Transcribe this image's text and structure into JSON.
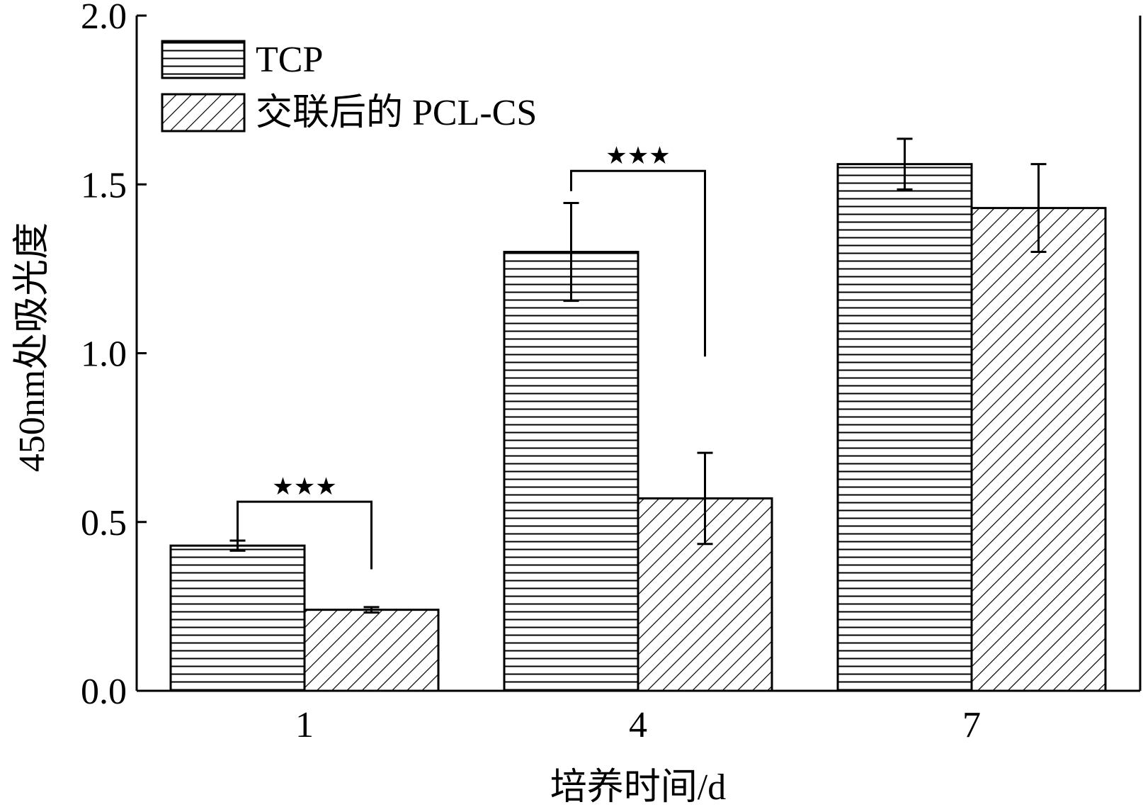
{
  "chart_data": {
    "type": "bar",
    "xlabel": "培养时间/d",
    "ylabel": "450nm处吸光度",
    "categories": [
      "1",
      "4",
      "7"
    ],
    "ylim": [
      0,
      2.0
    ],
    "yticks": [
      "0.0",
      "0.5",
      "1.0",
      "1.5",
      "2.0"
    ],
    "legend_position": "top-left",
    "grid": false,
    "series": [
      {
        "name": "TCP",
        "pattern": "horizontal-lines",
        "values": [
          0.43,
          1.3,
          1.56
        ],
        "errors": [
          0.015,
          0.145,
          0.075
        ]
      },
      {
        "name": "交联后的 PCL-CS",
        "pattern": "diagonal-lines",
        "values": [
          0.24,
          0.57,
          1.43
        ],
        "errors": [
          0.008,
          0.135,
          0.13
        ]
      }
    ],
    "significance": [
      {
        "category_index": 0,
        "label": "★★★",
        "left_y": 0.43,
        "right_y": 0.36,
        "top_y": 0.56
      },
      {
        "category_index": 1,
        "label": "★★★",
        "left_y": 1.48,
        "right_y": 0.99,
        "top_y": 1.54
      }
    ],
    "colors": {
      "bar_fill": "#ffffff",
      "stroke": "#000000"
    }
  }
}
